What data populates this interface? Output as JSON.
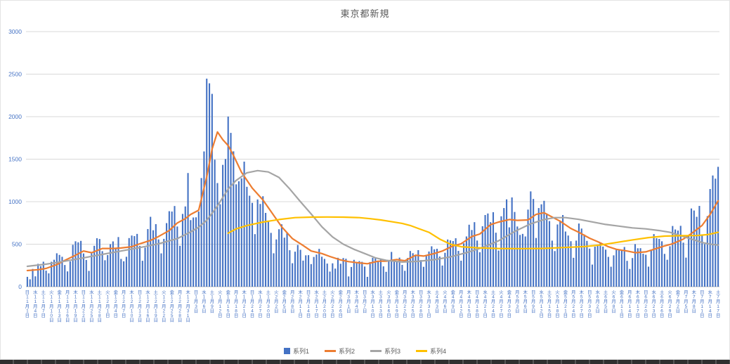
{
  "chart_data": {
    "type": "combo",
    "title": "東京都新規",
    "ylim": [
      0,
      3000
    ],
    "y_ticks": [
      0,
      500,
      1000,
      1500,
      2000,
      2500,
      3000
    ],
    "grid": true,
    "legend_position": "bottom",
    "axis_color": "#4472c4",
    "grid_color": "#d9d9d9",
    "title_color": "#595959",
    "x_tick_labels": [
      "日11月1日",
      "水11月4日",
      "土11月7日",
      "火11月10日",
      "金11月13日",
      "月11月16日",
      "木11月19日",
      "日11月22日",
      "水11月25日",
      "土11月28日",
      "火12月1日",
      "金12月4日",
      "月12月7日",
      "木12月10日",
      "日12月13日",
      "水12月16日",
      "土12月19日",
      "火12月22日",
      "金12月25日",
      "月12月28日",
      "木12月31日",
      "日1月3日",
      "水1月6日",
      "土1月9日",
      "火1月12日",
      "金1月15日",
      "月1月18日",
      "木1月21日",
      "日1月24日",
      "水1月27日",
      "土1月30日",
      "火2月2日",
      "金2月5日",
      "月2月8日",
      "木2月11日",
      "日2月14日",
      "水2月17日",
      "土2月20日",
      "火2月23日",
      "金2月26日",
      "月3月1日",
      "木3月4日",
      "日3月7日",
      "水3月10日",
      "土3月13日",
      "火3月16日",
      "金3月19日",
      "月3月22日",
      "木3月25日",
      "日3月28日",
      "水3月31日",
      "土4月3日",
      "火4月6日",
      "金4月9日",
      "月4月12日",
      "木4月15日",
      "日4月18日",
      "水4月21日",
      "土4月24日",
      "火4月27日",
      "金4月30日",
      "月5月3日",
      "木5月6日",
      "日5月9日",
      "水5月12日",
      "土5月15日",
      "火5月18日",
      "金5月21日",
      "月5月24日",
      "木5月27日",
      "日5月30日",
      "水6月2日",
      "土6月5日",
      "火6月8日",
      "金6月11日",
      "月6月14日",
      "木6月17日",
      "日6月20日",
      "水6月23日",
      "土6月26日",
      "火6月29日",
      "金7月2日",
      "月7月5日",
      "木7月8日",
      "日7月11日",
      "水7月14日",
      "土7月17日"
    ],
    "bar_series": {
      "name": "系列1",
      "color": "#4472C4",
      "values": [
        116,
        87,
        209,
        122,
        269,
        242,
        294,
        189,
        157,
        293,
        317,
        393,
        374,
        352,
        255,
        180,
        298,
        493,
        534,
        522,
        539,
        391,
        314,
        186,
        401,
        481,
        570,
        561,
        418,
        311,
        372,
        500,
        533,
        449,
        584,
        327,
        299,
        352,
        572,
        602,
        595,
        621,
        480,
        305,
        460,
        678,
        822,
        664,
        736,
        556,
        392,
        563,
        748,
        888,
        884,
        949,
        708,
        481,
        856,
        944,
        1337,
        783,
        814,
        816,
        884,
        1278,
        1591,
        2447,
        2392,
        2268,
        1494,
        1219,
        970,
        1433,
        1502,
        2001,
        1809,
        1592,
        1204,
        1240,
        1274,
        1471,
        1175,
        1070,
        986,
        618,
        1026,
        973,
        1064,
        868,
        769,
        633,
        393,
        556,
        676,
        734,
        577,
        639,
        429,
        276,
        412,
        491,
        434,
        307,
        369,
        371,
        266,
        350,
        378,
        445,
        353,
        327,
        272,
        178,
        275,
        213,
        340,
        270,
        337,
        329,
        121,
        232,
        316,
        279,
        301,
        293,
        237,
        116,
        290,
        340,
        335,
        304,
        330,
        239,
        175,
        300,
        409,
        323,
        303,
        342,
        256,
        187,
        337,
        420,
        394,
        376,
        430,
        313,
        234,
        364,
        414,
        475,
        440,
        446,
        355,
        249,
        399,
        555,
        545,
        537,
        570,
        421,
        306,
        510,
        591,
        729,
        667,
        759,
        543,
        405,
        711,
        843,
        861,
        759,
        876,
        635,
        425,
        828,
        925,
        1027,
        698,
        1050,
        879,
        708,
        609,
        621,
        591,
        907,
        1121,
        1032,
        573,
        925,
        969,
        1010,
        854,
        772,
        542,
        419,
        732,
        766,
        843,
        649,
        602,
        535,
        340,
        542,
        743,
        684,
        614,
        539,
        448,
        260,
        471,
        487,
        508,
        472,
        436,
        351,
        235,
        369,
        440,
        439,
        435,
        467,
        304,
        209,
        337,
        501,
        452,
        453,
        388,
        376,
        236,
        435,
        619,
        570,
        562,
        534,
        386,
        317,
        476,
        714,
        673,
        660,
        716,
        518,
        342,
        593,
        920,
        896,
        822,
        950,
        614,
        502,
        830,
        1149,
        1308,
        1271,
        1410
      ]
    },
    "line_series": [
      {
        "name": "系列2",
        "color": "#ED7D31",
        "points": [
          [
            0,
            190
          ],
          [
            4,
            200
          ],
          [
            7,
            215
          ],
          [
            11,
            260
          ],
          [
            14,
            310
          ],
          [
            18,
            370
          ],
          [
            21,
            420
          ],
          [
            24,
            400
          ],
          [
            28,
            450
          ],
          [
            32,
            450
          ],
          [
            35,
            455
          ],
          [
            39,
            470
          ],
          [
            42,
            505
          ],
          [
            46,
            545
          ],
          [
            49,
            590
          ],
          [
            53,
            660
          ],
          [
            56,
            750
          ],
          [
            59,
            800
          ],
          [
            61,
            850
          ],
          [
            64,
            900
          ],
          [
            67,
            1290
          ],
          [
            69,
            1620
          ],
          [
            71,
            1820
          ],
          [
            73,
            1730
          ],
          [
            75,
            1660
          ],
          [
            77,
            1545
          ],
          [
            80,
            1345
          ],
          [
            84,
            1160
          ],
          [
            88,
            1020
          ],
          [
            92,
            840
          ],
          [
            95,
            705
          ],
          [
            99,
            565
          ],
          [
            103,
            485
          ],
          [
            106,
            420
          ],
          [
            110,
            390
          ],
          [
            113,
            355
          ],
          [
            117,
            315
          ],
          [
            120,
            295
          ],
          [
            124,
            280
          ],
          [
            127,
            270
          ],
          [
            131,
            300
          ],
          [
            134,
            300
          ],
          [
            138,
            320
          ],
          [
            141,
            305
          ],
          [
            145,
            370
          ],
          [
            148,
            360
          ],
          [
            152,
            390
          ],
          [
            155,
            420
          ],
          [
            159,
            480
          ],
          [
            162,
            505
          ],
          [
            166,
            590
          ],
          [
            169,
            620
          ],
          [
            173,
            730
          ],
          [
            176,
            760
          ],
          [
            180,
            790
          ],
          [
            183,
            780
          ],
          [
            187,
            785
          ],
          [
            190,
            850
          ],
          [
            193,
            870
          ],
          [
            196,
            820
          ],
          [
            199,
            770
          ],
          [
            203,
            685
          ],
          [
            206,
            640
          ],
          [
            210,
            570
          ],
          [
            213,
            530
          ],
          [
            217,
            470
          ],
          [
            220,
            440
          ],
          [
            224,
            420
          ],
          [
            227,
            400
          ],
          [
            231,
            410
          ],
          [
            234,
            440
          ],
          [
            238,
            480
          ],
          [
            241,
            505
          ],
          [
            245,
            560
          ],
          [
            248,
            625
          ],
          [
            252,
            720
          ],
          [
            255,
            850
          ],
          [
            258,
            1010
          ]
        ]
      },
      {
        "name": "系列3",
        "color": "#A5A5A5",
        "points": [
          [
            0,
            240
          ],
          [
            7,
            265
          ],
          [
            14,
            300
          ],
          [
            21,
            340
          ],
          [
            28,
            380
          ],
          [
            35,
            420
          ],
          [
            42,
            460
          ],
          [
            49,
            505
          ],
          [
            56,
            565
          ],
          [
            61,
            645
          ],
          [
            64,
            700
          ],
          [
            67,
            780
          ],
          [
            71,
            950
          ],
          [
            75,
            1150
          ],
          [
            78,
            1250
          ],
          [
            82,
            1340
          ],
          [
            86,
            1365
          ],
          [
            90,
            1350
          ],
          [
            94,
            1285
          ],
          [
            98,
            1150
          ],
          [
            102,
            1000
          ],
          [
            106,
            855
          ],
          [
            110,
            705
          ],
          [
            114,
            585
          ],
          [
            118,
            500
          ],
          [
            122,
            440
          ],
          [
            126,
            390
          ],
          [
            130,
            340
          ],
          [
            134,
            310
          ],
          [
            140,
            290
          ],
          [
            146,
            298
          ],
          [
            152,
            318
          ],
          [
            158,
            350
          ],
          [
            164,
            400
          ],
          [
            170,
            460
          ],
          [
            176,
            540
          ],
          [
            182,
            650
          ],
          [
            188,
            740
          ],
          [
            193,
            790
          ],
          [
            197,
            812
          ],
          [
            201,
            812
          ],
          [
            206,
            792
          ],
          [
            211,
            762
          ],
          [
            216,
            732
          ],
          [
            221,
            712
          ],
          [
            226,
            692
          ],
          [
            231,
            680
          ],
          [
            236,
            660
          ],
          [
            240,
            640
          ],
          [
            244,
            600
          ],
          [
            248,
            560
          ],
          [
            252,
            520
          ],
          [
            255,
            500
          ],
          [
            258,
            490
          ]
        ]
      },
      {
        "name": "系列4",
        "color": "#FFC000",
        "points": [
          [
            75,
            630
          ],
          [
            78,
            680
          ],
          [
            82,
            720
          ],
          [
            88,
            760
          ],
          [
            94,
            790
          ],
          [
            100,
            812
          ],
          [
            106,
            818
          ],
          [
            112,
            820
          ],
          [
            118,
            818
          ],
          [
            124,
            812
          ],
          [
            128,
            800
          ],
          [
            132,
            785
          ],
          [
            136,
            765
          ],
          [
            140,
            745
          ],
          [
            143,
            720
          ],
          [
            146,
            685
          ],
          [
            150,
            640
          ],
          [
            154,
            560
          ],
          [
            158,
            500
          ],
          [
            162,
            470
          ],
          [
            168,
            458
          ],
          [
            176,
            450
          ],
          [
            184,
            448
          ],
          [
            192,
            450
          ],
          [
            200,
            460
          ],
          [
            208,
            472
          ],
          [
            214,
            490
          ],
          [
            220,
            520
          ],
          [
            226,
            550
          ],
          [
            232,
            578
          ],
          [
            238,
            595
          ],
          [
            244,
            600
          ],
          [
            250,
            602
          ],
          [
            254,
            612
          ],
          [
            258,
            640
          ]
        ]
      }
    ],
    "legend_entries": [
      "系列1",
      "系列2",
      "系列3",
      "系列4"
    ]
  }
}
